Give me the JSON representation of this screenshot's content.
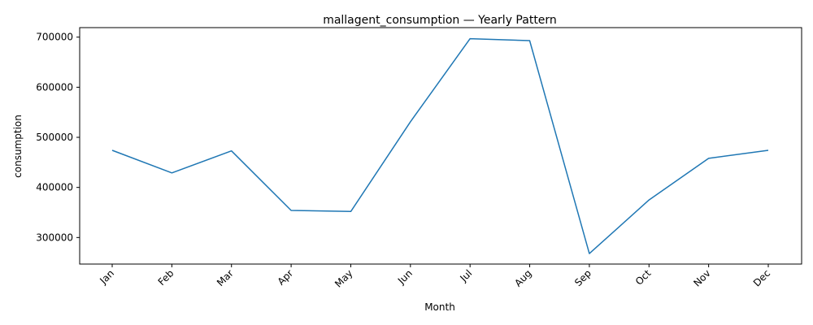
{
  "chart_data": {
    "type": "line",
    "title": "mallagent_consumption — Yearly Pattern",
    "xlabel": "Month",
    "ylabel": "consumption",
    "categories": [
      "Jan",
      "Feb",
      "Mar",
      "Apr",
      "May",
      "Jun",
      "Jul",
      "Aug",
      "Sep",
      "Oct",
      "Nov",
      "Dec"
    ],
    "series": [
      {
        "values": [
          474000,
          429000,
          473000,
          354000,
          352000,
          531000,
          697000,
          693000,
          268000,
          375000,
          458000,
          474000
        ],
        "color": "#1f77b4"
      }
    ],
    "ylim": [
      247000,
      719000
    ],
    "yticks": [
      300000,
      400000,
      500000,
      600000,
      700000
    ],
    "ytick_labels": [
      "300000",
      "400000",
      "500000",
      "600000",
      "700000"
    ],
    "grid": false,
    "legend": "none"
  }
}
